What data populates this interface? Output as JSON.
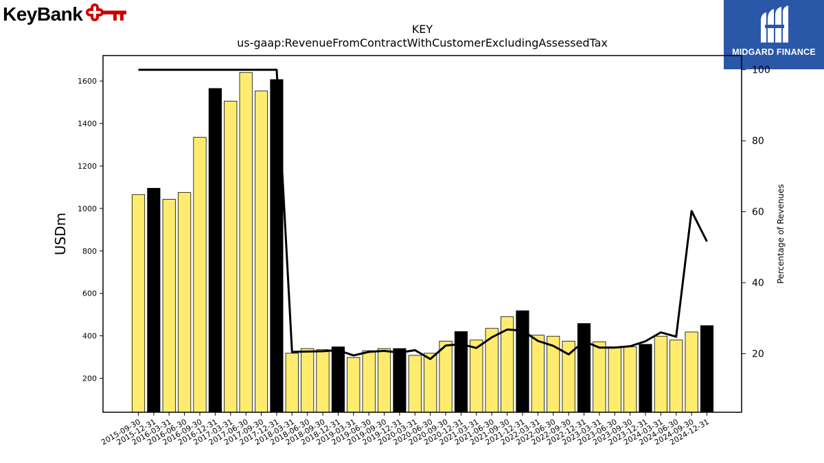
{
  "logos": {
    "left": {
      "text": "KeyBank",
      "color": "#cc0000"
    },
    "right": {
      "text": "MIDGARD FINANCE",
      "background": "#2b57a8"
    }
  },
  "chart_data": {
    "type": "bar",
    "title": "KEY",
    "subtitle": "us-gaap:RevenueFromContractWithCustomerExcludingAssessedTax",
    "ylabel": "USDm",
    "y2label": "Percentage of Revenues",
    "ylim": [
      40,
      1720
    ],
    "y2lim": [
      3.5,
      104
    ],
    "yticks": [
      200,
      400,
      600,
      800,
      1000,
      1200,
      1400,
      1600
    ],
    "y2ticks": [
      20,
      40,
      60,
      80,
      100
    ],
    "bar_color_quarter": "#ffec6e",
    "bar_color_annual": "#000000",
    "line_color": "#000000",
    "categories": [
      "2015-09-30",
      "2015-12-31",
      "2016-03-31",
      "2016-06-30",
      "2016-09-30",
      "2016-12-31",
      "2017-03-31",
      "2017-06-30",
      "2017-09-30",
      "2017-12-31",
      "2018-03-31",
      "2018-06-30",
      "2018-09-30",
      "2018-12-31",
      "2019-03-31",
      "2019-06-30",
      "2019-09-30",
      "2019-12-31",
      "2020-03-31",
      "2020-06-30",
      "2020-09-30",
      "2020-12-31",
      "2021-03-31",
      "2021-06-30",
      "2021-09-30",
      "2021-12-31",
      "2022-03-31",
      "2022-06-30",
      "2022-09-30",
      "2022-12-31",
      "2023-03-31",
      "2023-06-30",
      "2023-09-30",
      "2023-12-31",
      "2024-03-31",
      "2024-06-30",
      "2024-09-30",
      "2024-12-31"
    ],
    "values": [
      1065,
      1095,
      1043,
      1075,
      1335,
      1565,
      1505,
      1640,
      1553,
      1607,
      318,
      340,
      335,
      348,
      298,
      330,
      340,
      340,
      308,
      318,
      375,
      420,
      380,
      435,
      490,
      518,
      403,
      398,
      375,
      458,
      372,
      348,
      348,
      360,
      398,
      380,
      418,
      448
    ],
    "annual": [
      false,
      true,
      false,
      false,
      false,
      true,
      false,
      false,
      false,
      true,
      false,
      false,
      false,
      true,
      false,
      false,
      false,
      true,
      false,
      false,
      false,
      true,
      false,
      false,
      false,
      true,
      false,
      false,
      false,
      true,
      false,
      false,
      false,
      true,
      false,
      false,
      false,
      true
    ],
    "percentage": [
      100,
      100,
      100,
      100,
      100,
      100,
      100,
      100,
      100,
      100,
      20.5,
      20.6,
      20.7,
      21.0,
      19.5,
      20.5,
      20.8,
      20.3,
      21.0,
      18.5,
      22.3,
      22.7,
      21.6,
      24.6,
      26.8,
      26.5,
      23.6,
      22.2,
      19.8,
      23.5,
      21.7,
      21.7,
      22.1,
      23.5,
      26.0,
      24.8,
      60.2,
      51.6
    ]
  }
}
